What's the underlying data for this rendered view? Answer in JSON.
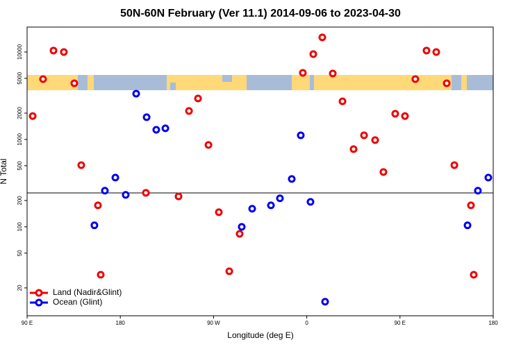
{
  "chart_data": {
    "type": "scatter",
    "title": "50N-60N February (Ver 11.1)   2014-09-06 to 2023-04-30",
    "x_label": "Longitude (deg E)",
    "y_label": "N Total",
    "log_y": true,
    "xlim": [
      90,
      540
    ],
    "ylim": [
      9.6,
      19300
    ],
    "xticks": [
      {
        "value": 90,
        "label": "90 E"
      },
      {
        "value": 180,
        "label": "180"
      },
      {
        "value": 270,
        "label": "90 W"
      },
      {
        "value": 360,
        "label": "0"
      },
      {
        "value": 450,
        "label": "90 E"
      },
      {
        "value": 540,
        "label": "180"
      }
    ],
    "yticks": [
      20,
      50,
      100,
      200,
      500,
      1000,
      2000,
      5000,
      10000
    ],
    "hline": 244,
    "legend": "bottom-left",
    "series": [
      {
        "name": "Land (Nadir&Glint)",
        "color": "#ee0000",
        "x": [
          95.4,
          105.4,
          115.5,
          125.5,
          135.6,
          142.3,
          158.4,
          161.1,
          204.7,
          236.2,
          246.3,
          255,
          265.1,
          275.1,
          285.2,
          295.2,
          356.2,
          366.3,
          375,
          385.1,
          394.5,
          405.2,
          415.3,
          426,
          434,
          445.4,
          454.8,
          464.8,
          475.6,
          485,
          495.1,
          502.5,
          518.5,
          521.2
        ],
        "values": [
          1850,
          4900,
          10400,
          10000,
          4390,
          508,
          176,
          28.3,
          245,
          223,
          2115,
          2940,
          865,
          147,
          31,
          83,
          5780,
          9470,
          14700,
          5680,
          2730,
          774,
          1115,
          982,
          424,
          1966,
          1850,
          4900,
          10400,
          10000,
          4390,
          508,
          176,
          28.3
        ]
      },
      {
        "name": "Ocean (Glint)",
        "color": "#0000ee",
        "x": [
          155,
          165.1,
          175.2,
          185.2,
          195.3,
          205.4,
          214.7,
          223.5,
          297.2,
          307.3,
          325.4,
          334.1,
          345.5,
          354.2,
          363.6,
          377.7,
          515.2,
          525.2,
          535.3
        ],
        "values": [
          104,
          259,
          366,
          232,
          3340,
          1795,
          1290,
          1340,
          100,
          161,
          176,
          212,
          353,
          1115,
          193,
          13.9,
          104,
          259,
          366
        ]
      }
    ]
  }
}
